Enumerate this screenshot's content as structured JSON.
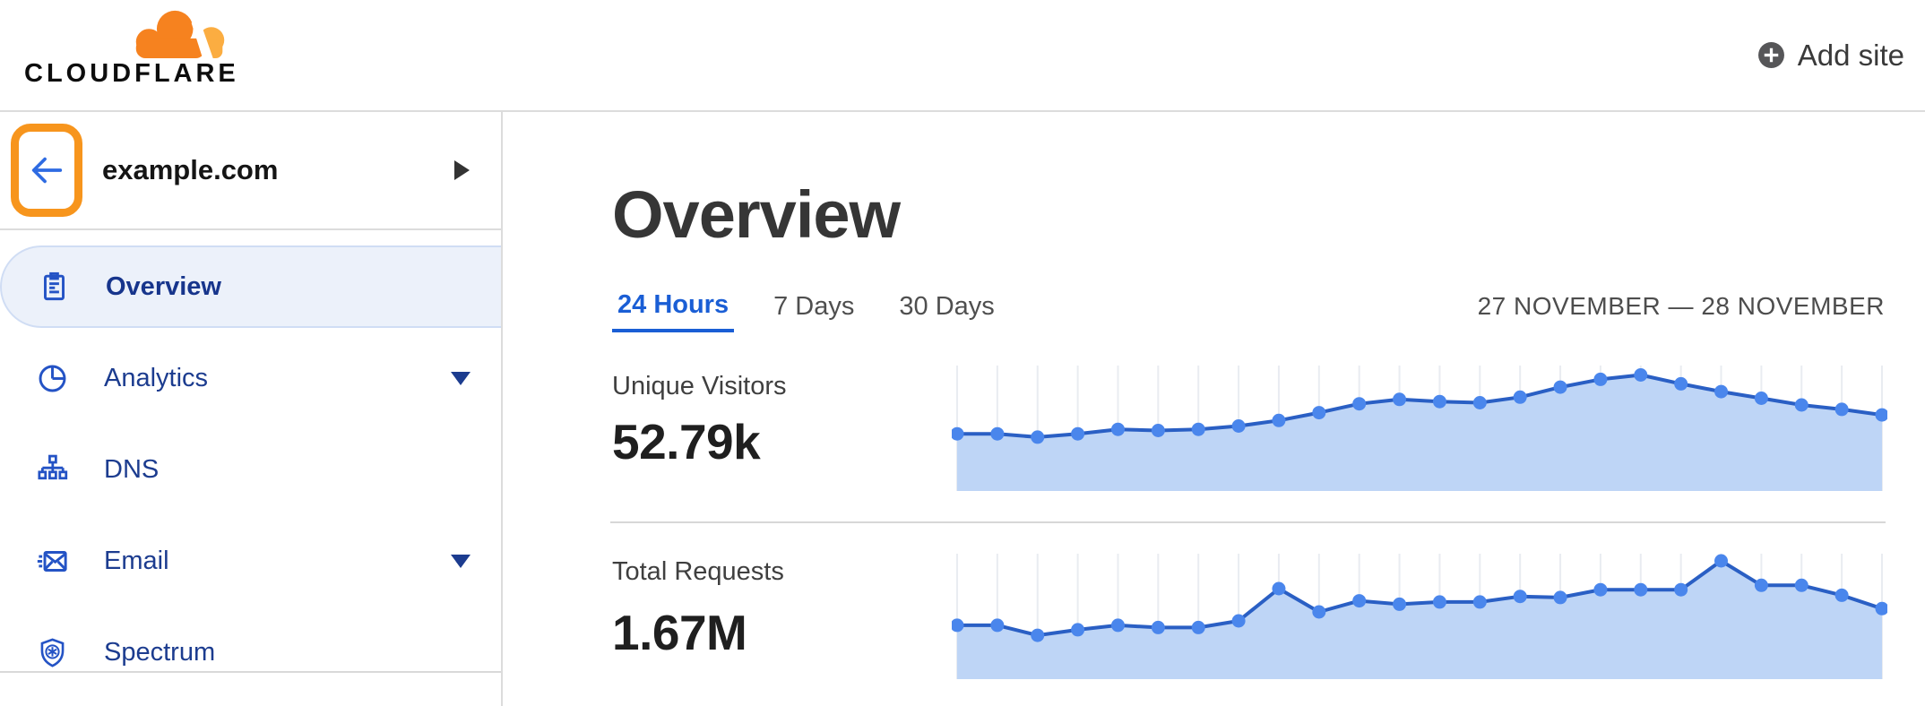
{
  "header": {
    "logo_text": "CLOUDFLARE",
    "add_site_label": "Add site"
  },
  "sidebar": {
    "site_name": "example.com",
    "items": [
      {
        "label": "Overview",
        "icon": "clipboard-icon",
        "selected": true
      },
      {
        "label": "Analytics",
        "icon": "pie-chart-icon",
        "expandable": true
      },
      {
        "label": "DNS",
        "icon": "dns-tree-icon"
      },
      {
        "label": "Email",
        "icon": "email-icon",
        "expandable": true
      },
      {
        "label": "Spectrum",
        "icon": "spectrum-shield-icon"
      }
    ]
  },
  "main": {
    "title": "Overview",
    "tabs": [
      {
        "label": "24 Hours",
        "active": true
      },
      {
        "label": "7 Days",
        "active": false
      },
      {
        "label": "30 Days",
        "active": false
      }
    ],
    "date_range": "27 NOVEMBER — 28 NOVEMBER",
    "metrics": [
      {
        "label": "Unique Visitors",
        "value": "52.79k"
      },
      {
        "label": "Total Requests",
        "value": "1.67M"
      }
    ]
  },
  "colors": {
    "brand_orange": "#F6821F",
    "brand_orange_light": "#FBAD41",
    "highlight_box_orange": "#F7951D",
    "active_tab_blue": "#1A5ED5",
    "nav_text_blue": "#1C3C8F",
    "nav_icon_blue": "#2453C5",
    "selected_item_bg": "#ECF1FA",
    "back_arrow_blue": "#2E6BE2",
    "chart_line": "#2A5FC4",
    "chart_point": "#4A86EC",
    "chart_area": "#BED5F6",
    "chart_gridline": "#E9ECF1"
  },
  "chart_data": [
    {
      "type": "area",
      "title": "Unique Visitors",
      "total_shown": "52.79k",
      "x_description": "24 points over the 24 Hours range, 27 November — 28 November (no x tick labels shown)",
      "y_description": "relative height, percent of chart maximum (no y-axis labels shown)",
      "values_percent_of_max": [
        45,
        45,
        42,
        45,
        49,
        48,
        49,
        52,
        57,
        64,
        72,
        76,
        74,
        73,
        78,
        87,
        94,
        98,
        90,
        83,
        77,
        71,
        67,
        62
      ],
      "grid": "vertical gridline at each point",
      "legend": "none"
    },
    {
      "type": "area",
      "title": "Total Requests",
      "total_shown": "1.67M",
      "x_description": "24 points over the 24 Hours range, 27 November — 28 November (no x tick labels shown)",
      "y_description": "relative height, percent of chart maximum (no y-axis labels shown)",
      "values_percent_of_max": [
        42,
        42,
        33,
        38,
        42,
        40,
        40,
        46,
        75,
        54,
        64,
        61,
        63,
        63,
        68,
        67,
        74,
        74,
        74,
        100,
        78,
        78,
        69,
        57
      ],
      "grid": "vertical gridline at each point",
      "legend": "none"
    }
  ]
}
